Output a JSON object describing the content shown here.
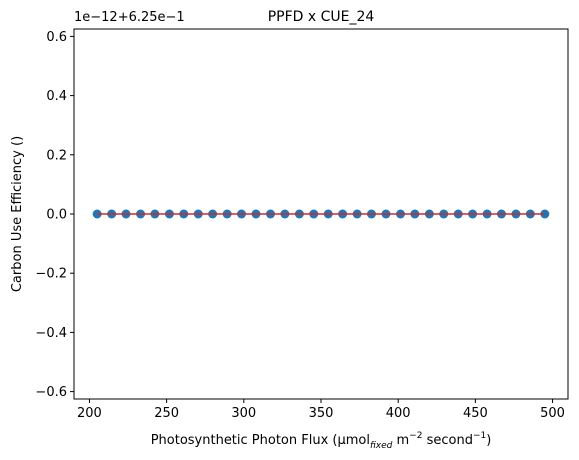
{
  "chart_data": {
    "type": "scatter",
    "title": "PPFD x CUE_24",
    "xlabel": {
      "prefix": "Photosynthetic Photon Flux (μmol",
      "sub": "fixed",
      "mid1": " m",
      "sup1": "−2",
      "mid2": " second",
      "sup2": "−1",
      "suffix": ")"
    },
    "ylabel": "Carbon Use Efficiency ()",
    "offset_text": "1e−12+6.25e−1",
    "xlim": [
      190,
      510
    ],
    "ylim": [
      -0.625,
      0.625
    ],
    "xticks": [
      200,
      250,
      300,
      350,
      400,
      450,
      500
    ],
    "xtick_labels": [
      "200",
      "250",
      "300",
      "350",
      "400",
      "450",
      "500"
    ],
    "yticks": [
      -0.6,
      -0.4,
      -0.2,
      0.0,
      0.2,
      0.4,
      0.6
    ],
    "ytick_labels": [
      "−0.6",
      "−0.4",
      "−0.2",
      "0.0",
      "0.2",
      "0.4",
      "0.6"
    ],
    "grid": false,
    "series": [
      {
        "marker_color": "#1f77b4",
        "x": [
          205,
          214.4,
          223.7,
          233.1,
          242.4,
          251.8,
          261.1,
          270.5,
          279.8,
          289.2,
          298.5,
          307.9,
          317.3,
          326.6,
          336,
          345.3,
          354.7,
          364,
          373.4,
          382.7,
          392.1,
          401.5,
          410.8,
          420.2,
          429.5,
          438.9,
          448.2,
          457.6,
          466.9,
          476.3,
          485.6,
          495
        ],
        "y": [
          0,
          0,
          0,
          0,
          0,
          0,
          0,
          0,
          0,
          0,
          0,
          0,
          0,
          0,
          0,
          0,
          0,
          0,
          0,
          0,
          0,
          0,
          0,
          0,
          0,
          0,
          0,
          0,
          0,
          0,
          0,
          0
        ]
      }
    ],
    "fit_line": {
      "color": "#d62728",
      "x": [
        205,
        495
      ],
      "y": [
        0,
        0
      ]
    }
  }
}
